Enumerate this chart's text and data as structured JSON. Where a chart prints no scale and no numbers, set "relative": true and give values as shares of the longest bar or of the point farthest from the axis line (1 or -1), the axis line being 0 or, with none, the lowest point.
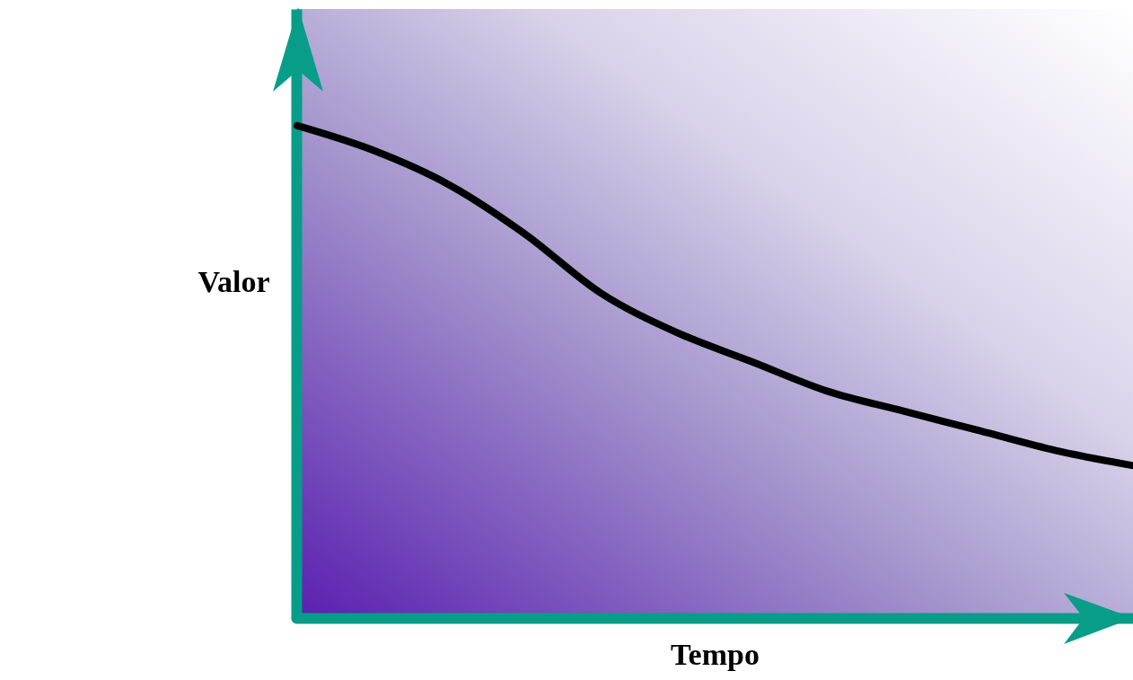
{
  "chart_data": {
    "type": "line",
    "relative": true,
    "xlabel": "Tempo",
    "ylabel": "Valor",
    "categories": [
      null,
      null,
      null,
      null,
      null,
      null,
      null,
      null,
      null,
      null,
      null,
      null
    ],
    "series": [
      {
        "color": "#000000",
        "values": [
          1,
          0.95,
          0.88,
          0.78,
          0.66,
          0.58,
          0.52,
          0.46,
          0.42,
          0.38,
          0.34,
          0.31
        ]
      }
    ],
    "grid": false,
    "tick_labels": false,
    "marker": "none",
    "line_style": "solid"
  }
}
